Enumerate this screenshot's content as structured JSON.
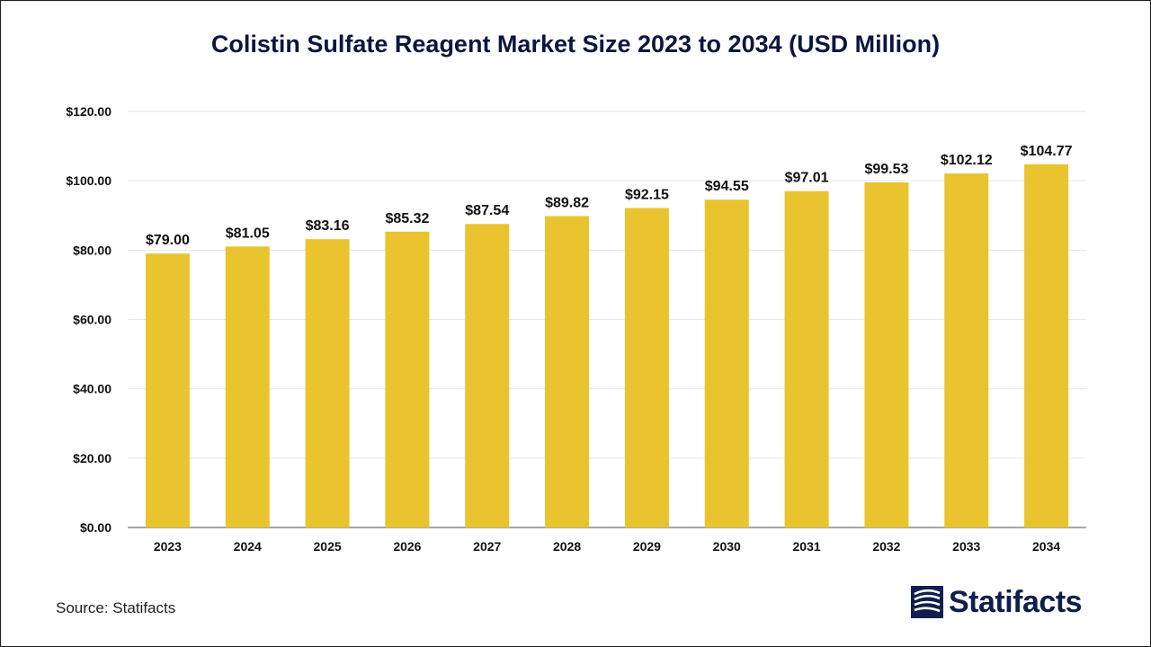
{
  "title": "Colistin Sulfate Reagent Market Size 2023 to 2034 (USD Million)",
  "source": "Source: Statifacts",
  "brand": {
    "name": "Statifacts",
    "logo_icon": "statifacts-logo-icon"
  },
  "colors": {
    "bar": "#e9c42f",
    "title": "#0b1640",
    "grid": "#e6e6e6",
    "axis": "#8c8c8c"
  },
  "chart_data": {
    "type": "bar",
    "title": "Colistin Sulfate Reagent Market Size 2023 to 2034 (USD Million)",
    "categories": [
      "2023",
      "2024",
      "2025",
      "2026",
      "2027",
      "2028",
      "2029",
      "2030",
      "2031",
      "2032",
      "2033",
      "2034"
    ],
    "values": [
      79.0,
      81.05,
      83.16,
      85.32,
      87.54,
      89.82,
      92.15,
      94.55,
      97.01,
      99.53,
      102.12,
      104.77
    ],
    "value_labels": [
      "$79.00",
      "$81.05",
      "$83.16",
      "$85.32",
      "$87.54",
      "$89.82",
      "$92.15",
      "$94.55",
      "$97.01",
      "$99.53",
      "$102.12",
      "$104.77"
    ],
    "ylim": [
      0,
      120
    ],
    "yticks": [
      0,
      20,
      40,
      60,
      80,
      100,
      120
    ],
    "ytick_labels": [
      "$0.00",
      "$20.00",
      "$40.00",
      "$60.00",
      "$80.00",
      "$100.00",
      "$120.00"
    ],
    "xlabel": "",
    "ylabel": "",
    "grid": true,
    "legend": "none"
  }
}
